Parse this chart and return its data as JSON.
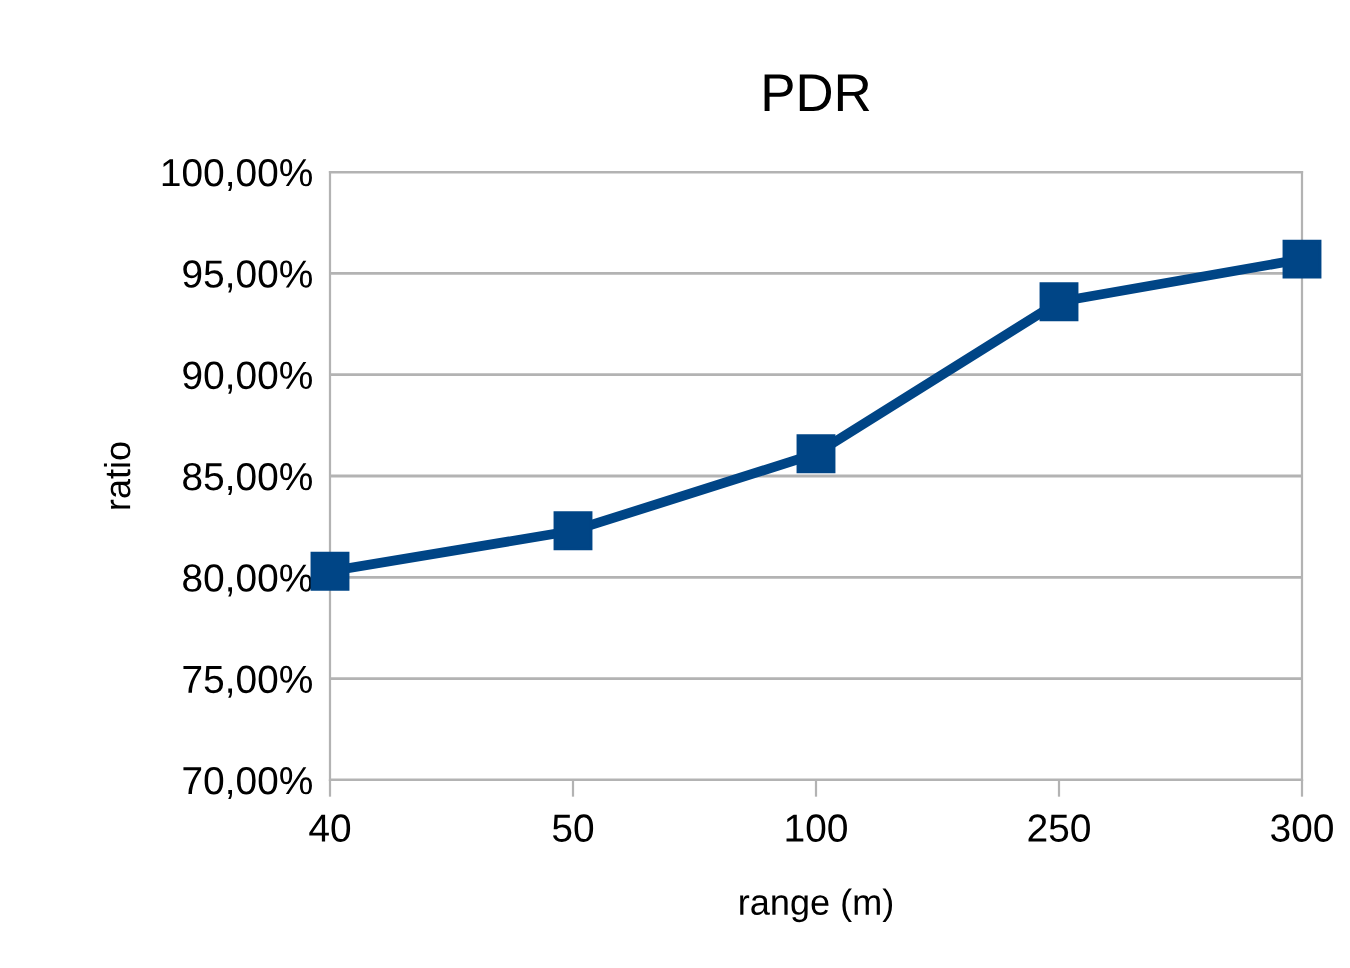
{
  "chart_data": {
    "type": "line",
    "title": "PDR",
    "xlabel": "range (m)",
    "ylabel": "ratio",
    "categories": [
      "40",
      "50",
      "100",
      "250",
      "300"
    ],
    "series": [
      {
        "color": "#004586",
        "values": [
          80.3,
          82.3,
          86.1,
          93.6,
          95.7
        ]
      }
    ],
    "ylim": [
      70,
      100
    ],
    "yticks": [
      {
        "value": 70,
        "label": "70,00%"
      },
      {
        "value": 75,
        "label": "75,00%"
      },
      {
        "value": 80,
        "label": "80,00%"
      },
      {
        "value": 85,
        "label": "85,00%"
      },
      {
        "value": 90,
        "label": "90,00%"
      },
      {
        "value": 95,
        "label": "95,00%"
      },
      {
        "value": 100,
        "label": "100,00%"
      }
    ],
    "grid": "y",
    "marker": "square",
    "line_style": "solid",
    "legend": false
  }
}
